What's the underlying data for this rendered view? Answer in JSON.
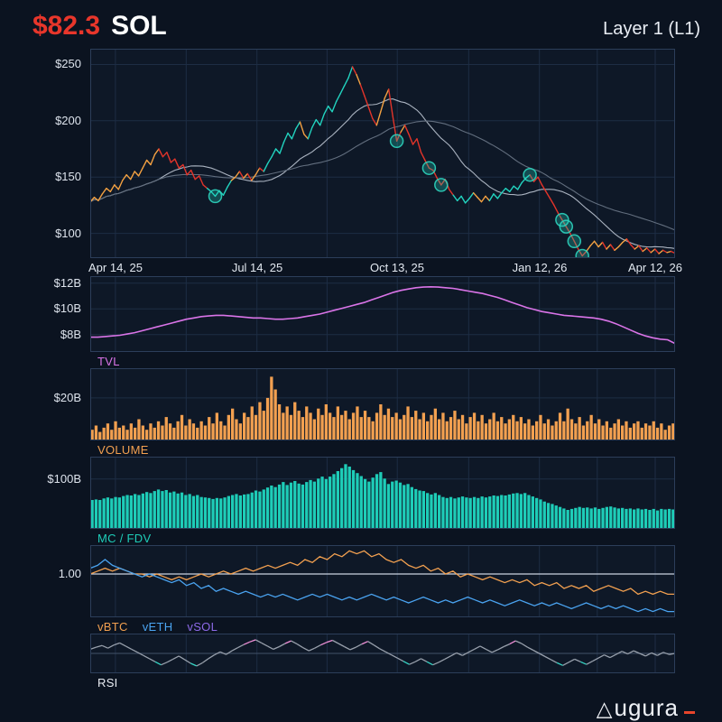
{
  "header": {
    "price": "$82.3",
    "price_color": "#e8362b",
    "symbol": "SOL",
    "category": "Layer 1 (L1)"
  },
  "footer": {
    "brand_triangle": "△",
    "brand": "ugura",
    "accent_color": "#e8452b"
  },
  "chart_data": {
    "type": "multi-panel",
    "x_range": [
      "Apr 14, 25",
      "Apr 12, 26"
    ],
    "xticks": [
      {
        "f": 0.043,
        "label": "Apr 14, 25"
      },
      {
        "f": 0.285,
        "label": "Jul 14, 25"
      },
      {
        "f": 0.525,
        "label": "Oct 13, 25"
      },
      {
        "f": 0.768,
        "label": "Jan 12, 26"
      },
      {
        "f": 0.966,
        "label": "Apr 12, 26"
      }
    ],
    "grid_x": [
      0.043,
      0.164,
      0.285,
      0.405,
      0.525,
      0.647,
      0.768,
      0.867,
      0.966
    ],
    "panels": [
      {
        "id": "price",
        "type": "price",
        "title": "",
        "ylim": [
          78,
          264
        ],
        "yticks": [
          {
            "v": 250,
            "label": "$250"
          },
          {
            "v": 200,
            "label": "$200"
          },
          {
            "v": 150,
            "label": "$150"
          },
          {
            "v": 100,
            "label": "$100"
          }
        ],
        "palette": {
          "o": "#f3a142",
          "r": "#e2342a",
          "t": "#22d3bf"
        },
        "ma_windows": [
          18,
          40
        ],
        "ma_colors": [
          "#aab3c0",
          "#626e7e"
        ],
        "marker_fill": "rgba(34,211,191,0.28)",
        "marker_stroke": "rgba(45,212,190,0.9)",
        "markers": [
          31,
          76,
          84,
          87,
          109,
          117,
          118,
          120,
          122
        ],
        "values": [
          128,
          132,
          129,
          135,
          140,
          137,
          143,
          139,
          147,
          152,
          148,
          155,
          151,
          158,
          165,
          161,
          170,
          175,
          168,
          172,
          163,
          166,
          158,
          161,
          152,
          156,
          148,
          151,
          143,
          140,
          137,
          133,
          138,
          134,
          141,
          147,
          150,
          155,
          149,
          153,
          147,
          152,
          158,
          155,
          162,
          168,
          175,
          171,
          181,
          189,
          184,
          193,
          199,
          188,
          184,
          194,
          201,
          196,
          206,
          213,
          208,
          217,
          224,
          231,
          238,
          248,
          241,
          232,
          222,
          212,
          202,
          196,
          208,
          220,
          228,
          204,
          182,
          190,
          196,
          188,
          179,
          184,
          172,
          165,
          158,
          156,
          149,
          143,
          148,
          139,
          134,
          129,
          133,
          127,
          131,
          136,
          132,
          128,
          133,
          129,
          135,
          131,
          136,
          140,
          137,
          142,
          139,
          145,
          149,
          152,
          146,
          150,
          143,
          137,
          131,
          125,
          118,
          112,
          106,
          100,
          93,
          86,
          80,
          84,
          89,
          93,
          88,
          92,
          86,
          90,
          85,
          88,
          92,
          95,
          90,
          86,
          89,
          84,
          87,
          83,
          86,
          82,
          85,
          83,
          84,
          82.3
        ],
        "colors_runs": [
          [
            18,
            "o"
          ],
          [
            12,
            "r"
          ],
          [
            6,
            "t"
          ],
          [
            2,
            "o"
          ],
          [
            1,
            "r"
          ],
          [
            1,
            "o"
          ],
          [
            1,
            "r"
          ],
          [
            2,
            "o"
          ],
          [
            1,
            "r"
          ],
          [
            9,
            "t"
          ],
          [
            2,
            "o"
          ],
          [
            11,
            "t"
          ],
          [
            1,
            "r"
          ],
          [
            1,
            "o"
          ],
          [
            4,
            "r"
          ],
          [
            3,
            "o"
          ],
          [
            3,
            "r"
          ],
          [
            1,
            "o"
          ],
          [
            12,
            "r"
          ],
          [
            5,
            "t"
          ],
          [
            4,
            "o"
          ],
          [
            10,
            "t"
          ],
          [
            14,
            "r"
          ],
          [
            4,
            "o"
          ],
          [
            1,
            "r"
          ],
          [
            1,
            "o"
          ],
          [
            1,
            "r"
          ],
          [
            3,
            "o"
          ],
          [
            2,
            "r"
          ],
          [
            1,
            "o"
          ],
          [
            1,
            "r"
          ],
          [
            1,
            "o"
          ],
          [
            1,
            "r"
          ],
          [
            1,
            "o"
          ],
          [
            1,
            "r"
          ],
          [
            1,
            "o"
          ],
          [
            1,
            "r"
          ],
          [
            1,
            "o"
          ],
          [
            1,
            "r"
          ]
        ]
      },
      {
        "id": "tvl",
        "type": "line",
        "title": "TVL",
        "color": "#da74e8",
        "title_color": "#da74e8",
        "ylim": [
          6.65,
          12.55
        ],
        "yticks": [
          {
            "v": 12,
            "label": "$12B"
          },
          {
            "v": 10,
            "label": "$10B"
          },
          {
            "v": 8,
            "label": "$8B"
          }
        ],
        "values": [
          7.8,
          7.8,
          7.85,
          7.9,
          7.95,
          8.05,
          8.15,
          8.3,
          8.45,
          8.6,
          8.75,
          8.9,
          9.05,
          9.2,
          9.3,
          9.4,
          9.45,
          9.5,
          9.5,
          9.45,
          9.4,
          9.35,
          9.3,
          9.3,
          9.25,
          9.2,
          9.2,
          9.25,
          9.3,
          9.4,
          9.5,
          9.6,
          9.75,
          9.9,
          10.05,
          10.2,
          10.35,
          10.5,
          10.7,
          10.9,
          11.1,
          11.3,
          11.45,
          11.55,
          11.65,
          11.7,
          11.72,
          11.7,
          11.65,
          11.6,
          11.5,
          11.4,
          11.3,
          11.2,
          11.05,
          10.9,
          10.7,
          10.5,
          10.3,
          10.1,
          9.95,
          9.8,
          9.7,
          9.6,
          9.5,
          9.45,
          9.4,
          9.35,
          9.3,
          9.2,
          9.05,
          8.85,
          8.6,
          8.35,
          8.1,
          7.9,
          7.75,
          7.65,
          7.6,
          7.3
        ]
      },
      {
        "id": "volume",
        "type": "bars",
        "title": "VOLUME",
        "color": "#f2a050",
        "title_color": "#f2a050",
        "ylim": [
          0,
          34
        ],
        "yticks": [
          {
            "v": 20,
            "label": "$20B"
          }
        ],
        "values": [
          5,
          7,
          4,
          6,
          8,
          5,
          9,
          6,
          7,
          5,
          8,
          6,
          10,
          7,
          5,
          8,
          6,
          9,
          7,
          11,
          8,
          6,
          9,
          12,
          7,
          10,
          8,
          6,
          9,
          7,
          11,
          8,
          13,
          9,
          7,
          12,
          15,
          10,
          8,
          13,
          11,
          16,
          12,
          18,
          14,
          20,
          30,
          24,
          17,
          13,
          16,
          12,
          18,
          14,
          11,
          16,
          13,
          10,
          15,
          12,
          17,
          13,
          11,
          16,
          12,
          14,
          10,
          13,
          16,
          11,
          14,
          11,
          9,
          13,
          17,
          12,
          15,
          11,
          13,
          10,
          12,
          16,
          11,
          14,
          10,
          13,
          9,
          12,
          15,
          10,
          13,
          9,
          11,
          14,
          10,
          12,
          8,
          11,
          13,
          9,
          12,
          8,
          10,
          13,
          9,
          11,
          8,
          10,
          12,
          9,
          11,
          8,
          10,
          7,
          9,
          12,
          8,
          10,
          7,
          9,
          13,
          9,
          15,
          10,
          8,
          11,
          7,
          9,
          12,
          8,
          10,
          7,
          9,
          6,
          8,
          10,
          7,
          9,
          6,
          8,
          9,
          6,
          8,
          7,
          9,
          6,
          8,
          5,
          7,
          8
        ]
      },
      {
        "id": "mcfdv",
        "type": "bars",
        "title": "MC / FDV",
        "color": "#1ecdb8",
        "title_color": "#1ecdb8",
        "ylim": [
          0,
          145
        ],
        "yticks": [
          {
            "v": 100,
            "label": "$100B"
          }
        ],
        "values": [
          58,
          59,
          58,
          61,
          63,
          61,
          64,
          63,
          66,
          68,
          67,
          70,
          68,
          71,
          74,
          72,
          76,
          79,
          76,
          78,
          73,
          75,
          71,
          73,
          68,
          70,
          66,
          68,
          64,
          63,
          62,
          60,
          62,
          61,
          63,
          66,
          68,
          70,
          67,
          69,
          70,
          73,
          77,
          75,
          79,
          83,
          87,
          84,
          89,
          94,
          88,
          93,
          96,
          91,
          89,
          94,
          98,
          95,
          101,
          105,
          100,
          105,
          110,
          116,
          122,
          130,
          125,
          118,
          112,
          106,
          100,
          95,
          103,
          110,
          114,
          101,
          90,
          95,
          97,
          93,
          88,
          90,
          84,
          80,
          77,
          76,
          72,
          69,
          72,
          68,
          64,
          62,
          64,
          61,
          63,
          65,
          63,
          62,
          64,
          62,
          65,
          63,
          65,
          67,
          66,
          68,
          67,
          69,
          71,
          72,
          70,
          72,
          68,
          65,
          62,
          59,
          55,
          52,
          50,
          47,
          44,
          41,
          38,
          40,
          42,
          44,
          42,
          43,
          41,
          43,
          40,
          42,
          44,
          45,
          43,
          41,
          42,
          40,
          41,
          39,
          41,
          39,
          40,
          38,
          40,
          37,
          40,
          39,
          40,
          39
        ]
      },
      {
        "id": "ratios",
        "type": "lines",
        "title": "",
        "ylim": [
          0.85,
          1.1
        ],
        "yticks": [
          {
            "v": 1,
            "label": "1.00"
          }
        ],
        "refline": 1.0,
        "legend": [
          {
            "label": "vBTC",
            "color": "#f2a050"
          },
          {
            "label": "vETH",
            "color": "#4aa3f0"
          },
          {
            "label": "vSOL",
            "color": "#8d6ae8"
          }
        ],
        "series": [
          {
            "name": "vSOL",
            "color": "#cad2e0",
            "values": [
              1.0,
              1.0
            ]
          },
          {
            "name": "vBTC",
            "color": "#f2a050",
            "values": [
              1.0,
              1.01,
              1.02,
              1.01,
              1.02,
              1.01,
              1.0,
              1.0,
              0.99,
              1.0,
              0.99,
              0.98,
              0.99,
              0.98,
              0.99,
              1.0,
              0.99,
              1.0,
              1.01,
              1.0,
              1.01,
              1.02,
              1.01,
              1.02,
              1.03,
              1.02,
              1.03,
              1.04,
              1.03,
              1.05,
              1.04,
              1.06,
              1.05,
              1.07,
              1.06,
              1.08,
              1.07,
              1.08,
              1.06,
              1.07,
              1.05,
              1.04,
              1.05,
              1.03,
              1.02,
              1.03,
              1.01,
              1.02,
              1.0,
              1.01,
              0.99,
              1.0,
              0.99,
              0.98,
              0.99,
              0.98,
              0.97,
              0.98,
              0.97,
              0.98,
              0.96,
              0.97,
              0.96,
              0.97,
              0.95,
              0.96,
              0.95,
              0.96,
              0.94,
              0.95,
              0.96,
              0.95,
              0.94,
              0.95,
              0.93,
              0.94,
              0.93,
              0.94,
              0.93,
              0.93
            ]
          },
          {
            "name": "vETH",
            "color": "#4aa3f0",
            "values": [
              1.02,
              1.03,
              1.05,
              1.03,
              1.02,
              1.01,
              1.0,
              0.99,
              1.0,
              0.99,
              0.98,
              0.97,
              0.98,
              0.96,
              0.97,
              0.95,
              0.96,
              0.94,
              0.95,
              0.94,
              0.93,
              0.94,
              0.93,
              0.92,
              0.93,
              0.92,
              0.93,
              0.92,
              0.91,
              0.92,
              0.93,
              0.92,
              0.93,
              0.92,
              0.91,
              0.92,
              0.91,
              0.92,
              0.93,
              0.92,
              0.91,
              0.92,
              0.91,
              0.9,
              0.91,
              0.92,
              0.91,
              0.9,
              0.91,
              0.9,
              0.91,
              0.92,
              0.91,
              0.9,
              0.91,
              0.9,
              0.89,
              0.9,
              0.91,
              0.9,
              0.89,
              0.9,
              0.89,
              0.9,
              0.89,
              0.88,
              0.89,
              0.9,
              0.89,
              0.88,
              0.89,
              0.88,
              0.89,
              0.88,
              0.87,
              0.88,
              0.87,
              0.88,
              0.87,
              0.87
            ]
          }
        ]
      },
      {
        "id": "rsi",
        "type": "rsi",
        "title": "RSI",
        "title_color": "#e9edf3",
        "color": "#98a0ac",
        "high": 70,
        "low": 30,
        "high_color": "#f08fd8",
        "low_color": "#35d6c6",
        "ylim": [
          12,
          88
        ],
        "yticks": [],
        "midline": 50,
        "values": [
          58,
          62,
          65,
          60,
          66,
          70,
          64,
          58,
          52,
          46,
          40,
          34,
          28,
          33,
          39,
          45,
          38,
          31,
          26,
          32,
          40,
          47,
          53,
          48,
          55,
          61,
          67,
          72,
          76,
          70,
          64,
          58,
          63,
          69,
          74,
          68,
          61,
          55,
          60,
          66,
          71,
          75,
          69,
          63,
          57,
          62,
          68,
          73,
          66,
          59,
          53,
          47,
          41,
          35,
          29,
          34,
          40,
          34,
          28,
          33,
          39,
          45,
          51,
          46,
          52,
          58,
          64,
          58,
          52,
          57,
          63,
          68,
          74,
          69,
          62,
          56,
          50,
          44,
          38,
          32,
          27,
          33,
          39,
          34,
          29,
          35,
          41,
          47,
          42,
          48,
          54,
          49,
          55,
          50,
          45,
          51,
          46,
          52,
          48,
          50
        ]
      }
    ]
  }
}
